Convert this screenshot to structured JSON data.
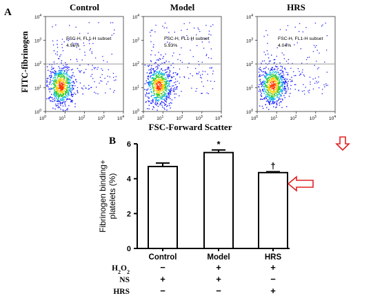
{
  "panel_a_label": "A",
  "panel_b_label": "B",
  "colors": {
    "axis": "#333333",
    "gate": "#999999",
    "density_low": "#1a1aff",
    "density_high": "#ff3300",
    "arrow": "#e02020"
  },
  "chart_data": [
    {
      "type": "scatter",
      "panel": "A",
      "ylabel": "FITC-fibrinogen",
      "xlabel": "FSC-Forward Scatter",
      "x_scale": "log",
      "y_scale": "log",
      "xlim": [
        1,
        10000
      ],
      "ylim": [
        1,
        10000
      ],
      "x_ticks": [
        {
          "value": 1,
          "base": "10",
          "exp": "0"
        },
        {
          "value": 10,
          "base": "10",
          "exp": "1"
        },
        {
          "value": 100,
          "base": "10",
          "exp": "2"
        },
        {
          "value": 1000,
          "base": "10",
          "exp": "3"
        },
        {
          "value": 10000,
          "base": "10",
          "exp": "4"
        }
      ],
      "y_ticks": [
        {
          "value": 1,
          "base": "10",
          "exp": "0"
        },
        {
          "value": 10,
          "base": "10",
          "exp": "1"
        },
        {
          "value": 100,
          "base": "10",
          "exp": "2"
        },
        {
          "value": 1000,
          "base": "10",
          "exp": "3"
        },
        {
          "value": 10000,
          "base": "10",
          "exp": "4"
        }
      ],
      "gate": {
        "fsc_min": 1,
        "fl1_min": 100
      },
      "plots": [
        {
          "title": "Control",
          "gate_label": "FSC-H, FL1-H subset",
          "gate_percent": "4.95%",
          "value": 4.95
        },
        {
          "title": "Model",
          "gate_label": "FSC-H, FL1-H subset",
          "gate_percent": "5.93%",
          "value": 5.93
        },
        {
          "title": "HRS",
          "gate_label": "FSC-H, FL1-H subset",
          "gate_percent": "4.04%",
          "value": 4.04
        }
      ],
      "highlighted_plot": "HRS"
    },
    {
      "type": "bar",
      "panel": "B",
      "ylabel": "Fibrinogen binding+ platelets (%)",
      "ylabel_lines": [
        "Fibrinogen binding+",
        "platelets (%)"
      ],
      "categories": [
        "Control",
        "Model",
        "HRS"
      ],
      "values": [
        4.7,
        5.5,
        4.35
      ],
      "errors": [
        0.2,
        0.15,
        0.05
      ],
      "ylim": [
        0,
        6
      ],
      "y_ticks": [
        "0",
        "2",
        "4",
        "6"
      ],
      "significance": [
        "",
        "*",
        "†"
      ],
      "highlighted_bar": "HRS",
      "treatments": [
        {
          "label": "H₂O₂",
          "marks": [
            "−",
            "+",
            "+"
          ]
        },
        {
          "label": "NS",
          "marks": [
            "+",
            "+",
            "−"
          ]
        },
        {
          "label": "HRS",
          "marks": [
            "−",
            "−",
            "+"
          ]
        }
      ]
    }
  ]
}
